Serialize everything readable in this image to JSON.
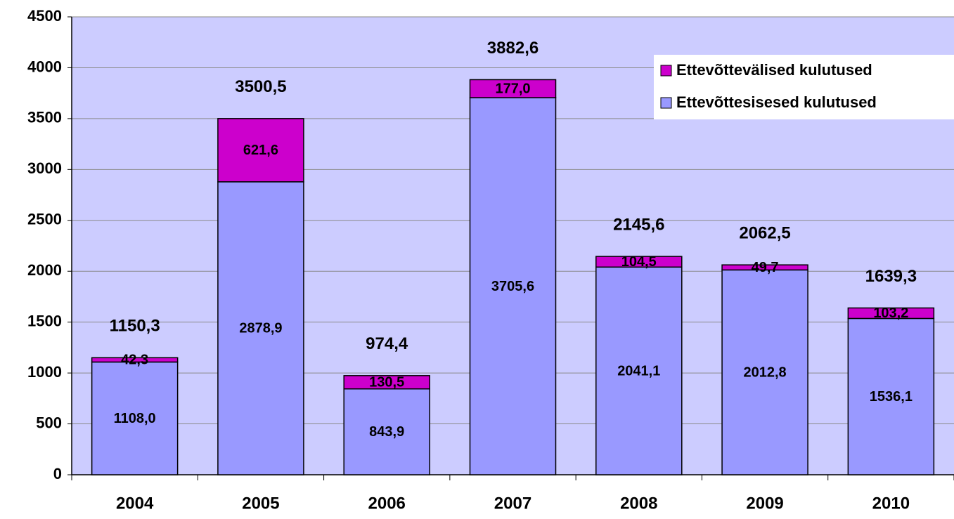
{
  "chart_data": {
    "type": "stacked_bar",
    "categories": [
      "2004",
      "2005",
      "2006",
      "2007",
      "2008",
      "2009",
      "2010"
    ],
    "series": [
      {
        "name": "Ettevõttesisesed kulutused",
        "color": "#9999ff",
        "values": [
          1108.0,
          2878.9,
          843.9,
          3705.6,
          2041.1,
          2012.8,
          1536.1
        ],
        "value_labels": [
          "1108,0",
          "2878,9",
          "843,9",
          "3705,6",
          "2041,1",
          "2012,8",
          "1536,1"
        ]
      },
      {
        "name": "Ettevõttevälised kulutused",
        "color": "#cc00cc",
        "values": [
          42.3,
          621.6,
          130.5,
          177.0,
          104.5,
          49.7,
          103.2
        ],
        "value_labels": [
          "42,3",
          "621,6",
          "130,5",
          "177,0",
          "104,5",
          "49,7",
          "103,2"
        ]
      }
    ],
    "totals": [
      1150.3,
      3500.5,
      974.4,
      3882.6,
      2145.6,
      2062.5,
      1639.3
    ],
    "total_labels": [
      "1150,3",
      "3500,5",
      "974,4",
      "3882,6",
      "2145,6",
      "2062,5",
      "1639,3"
    ],
    "ylim": [
      0,
      4500
    ],
    "yticks": [
      0,
      500,
      1000,
      1500,
      2000,
      2500,
      3000,
      3500,
      4000,
      4500
    ],
    "grid": true,
    "legend": "upper right",
    "background": "#ccccff"
  }
}
